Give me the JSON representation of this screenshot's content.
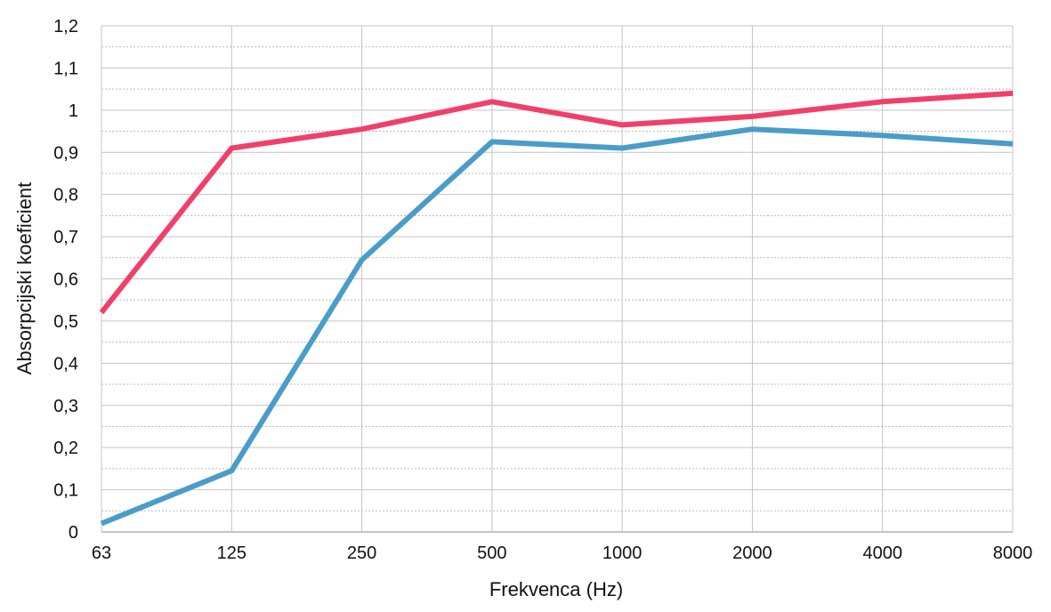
{
  "chart_data": {
    "type": "line",
    "title": "",
    "xlabel": "Frekvenca (Hz)",
    "ylabel": "Absorpcijski koeficient",
    "categories": [
      "63",
      "125",
      "250",
      "500",
      "1000",
      "2000",
      "4000",
      "8000"
    ],
    "yticks": [
      "0",
      "0,1",
      "0,2",
      "0,3",
      "0,4",
      "0,5",
      "0,6",
      "0,7",
      "0,8",
      "0,9",
      "1",
      "1,1",
      "1,2"
    ],
    "ylim": [
      0,
      1.2
    ],
    "grid": true,
    "minor_grid": true,
    "series": [
      {
        "color": "#f0406a",
        "values": [
          0.52,
          0.91,
          0.955,
          1.02,
          0.965,
          0.985,
          1.02,
          1.04
        ]
      },
      {
        "color": "#4a9cc9",
        "values": [
          0.02,
          0.145,
          0.645,
          0.925,
          0.91,
          0.955,
          0.94,
          0.92
        ]
      }
    ]
  }
}
